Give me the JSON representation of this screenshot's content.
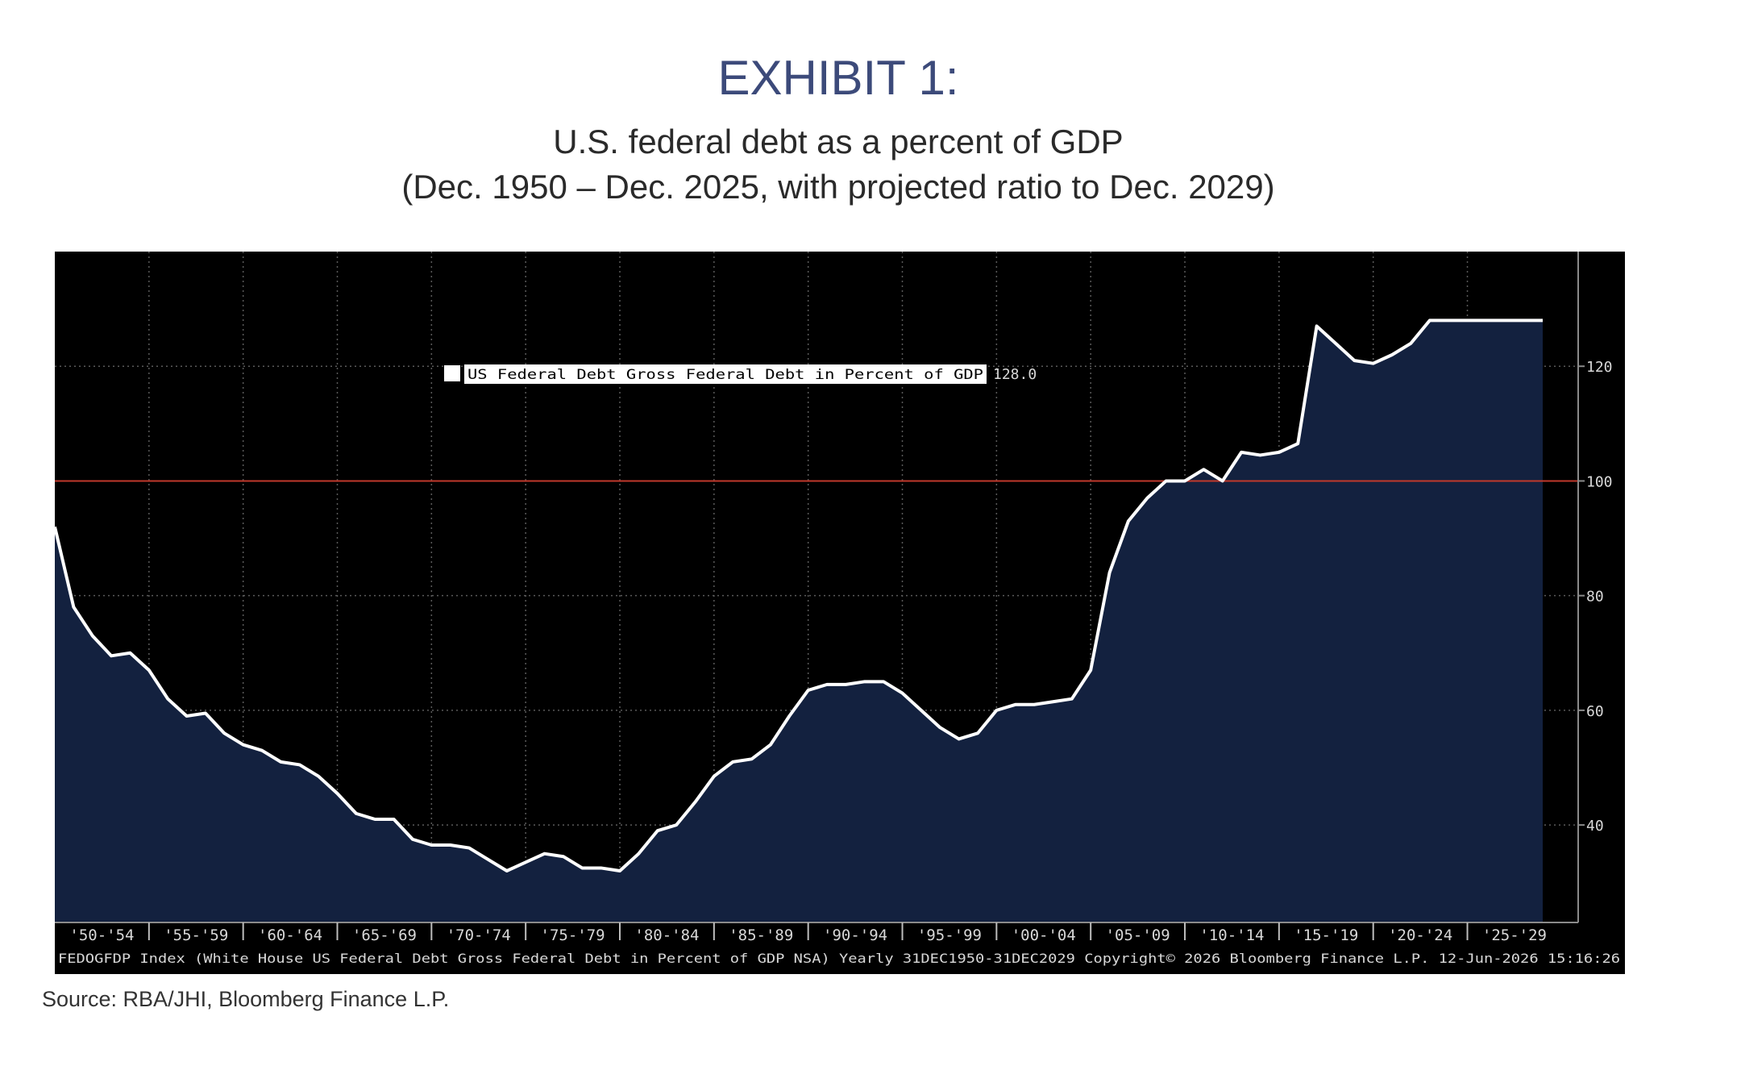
{
  "header": {
    "exhibit": "EXHIBIT 1:",
    "subtitle_line1": "U.S. federal debt as a percent of GDP",
    "subtitle_line2": "(Dec. 1950 – Dec. 2025, with projected ratio to Dec. 2029)"
  },
  "chart_data": {
    "type": "area",
    "legend": {
      "label": "US Federal Debt Gross Federal Debt in Percent of GDP",
      "last_value": "128.0"
    },
    "footer_text": "FEDOGFDP Index (White House US Federal Debt Gross Federal Debt in Percent of GDP NSA) Yearly 31DEC1950-31DEC2029  Copyright© 2026 Bloomberg Finance L.P.  12-Jun-2026 15:16:26",
    "x_tick_labels": [
      "'50-'54",
      "'55-'59",
      "'60-'64",
      "'65-'69",
      "'70-'74",
      "'75-'79",
      "'80-'84",
      "'85-'89",
      "'90-'94",
      "'95-'99",
      "'00-'04",
      "'05-'09",
      "'10-'14",
      "'15-'19",
      "'20-'24",
      "'25-'29"
    ],
    "y_ticks": [
      40,
      60,
      80,
      100,
      120
    ],
    "ylim": [
      23,
      140
    ],
    "xlim": [
      1950,
      2030
    ],
    "reference_line": 100,
    "colors": {
      "background": "#000000",
      "area_fill": "#13213f",
      "line": "#ffffff",
      "reference_line": "#c0392b",
      "grid": "#5a5a5a",
      "axis_text": "#d8d8d8"
    },
    "grid": true,
    "legend_position": "top-left",
    "series": [
      {
        "name": "US Federal Debt Gross Federal Debt in Percent of GDP",
        "x": [
          1950,
          1951,
          1952,
          1953,
          1954,
          1955,
          1956,
          1957,
          1958,
          1959,
          1960,
          1961,
          1962,
          1963,
          1964,
          1965,
          1966,
          1967,
          1968,
          1969,
          1970,
          1971,
          1972,
          1973,
          1974,
          1975,
          1976,
          1977,
          1978,
          1979,
          1980,
          1981,
          1982,
          1983,
          1984,
          1985,
          1986,
          1987,
          1988,
          1989,
          1990,
          1991,
          1992,
          1993,
          1994,
          1995,
          1996,
          1997,
          1998,
          1999,
          2000,
          2001,
          2002,
          2003,
          2004,
          2005,
          2006,
          2007,
          2008,
          2009,
          2010,
          2011,
          2012,
          2013,
          2014,
          2015,
          2016,
          2017,
          2018,
          2019,
          2020,
          2021,
          2022,
          2023,
          2024,
          2025,
          2026,
          2027,
          2028,
          2029
        ],
        "values": [
          92,
          78,
          73,
          69.5,
          70,
          67,
          62,
          59,
          59.5,
          56,
          54,
          53,
          51,
          50.5,
          48.5,
          45.5,
          42,
          41,
          41,
          37.5,
          36.5,
          36.5,
          36,
          34,
          32,
          33.5,
          35,
          34.5,
          32.5,
          32.5,
          32,
          35,
          39,
          40,
          44,
          48.5,
          51,
          51.5,
          54,
          59,
          63.5,
          64.5,
          64.5,
          65,
          65,
          63,
          60,
          57,
          55,
          56,
          60,
          61,
          61,
          61.5,
          62,
          67,
          84,
          93,
          97,
          100,
          100,
          102,
          100,
          105,
          104.5,
          105,
          106.5,
          127,
          124,
          121,
          120.5,
          122,
          124,
          128,
          128,
          128,
          128,
          128,
          128,
          128
        ]
      }
    ]
  },
  "footer": {
    "source": "Source: RBA/JHI, Bloomberg Finance L.P."
  }
}
